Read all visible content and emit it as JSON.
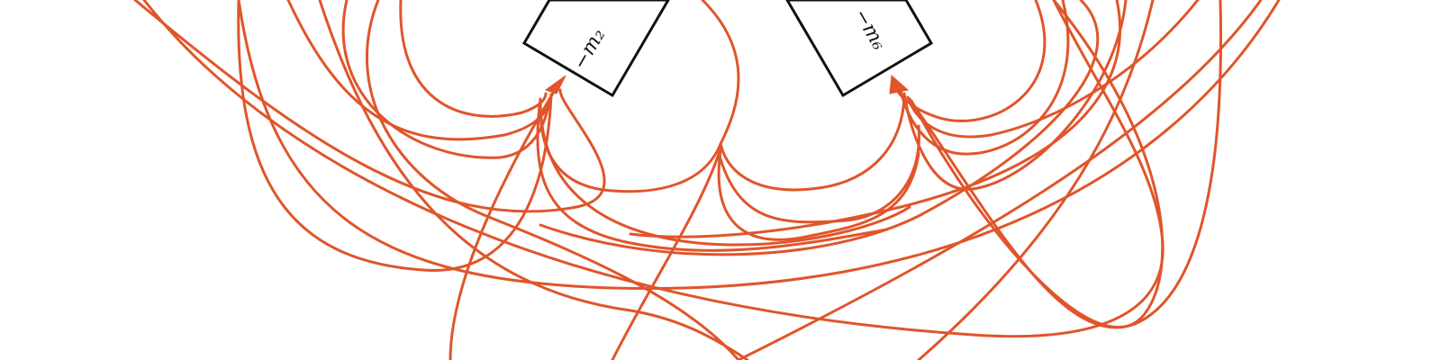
{
  "diagram": {
    "type": "directed-graph",
    "colors": {
      "edge": "#e0552a",
      "node_border": "#111111",
      "node_fill": "#ffffff",
      "text": "#111111",
      "background": "#ffffff"
    },
    "nodes": [
      {
        "id": "left-node",
        "label": "−m₂",
        "partially_visible": true
      },
      {
        "id": "right-node",
        "label": "−m₆",
        "partially_visible": true
      }
    ],
    "edge_target_nodes": [
      "left-node",
      "right-node"
    ]
  }
}
